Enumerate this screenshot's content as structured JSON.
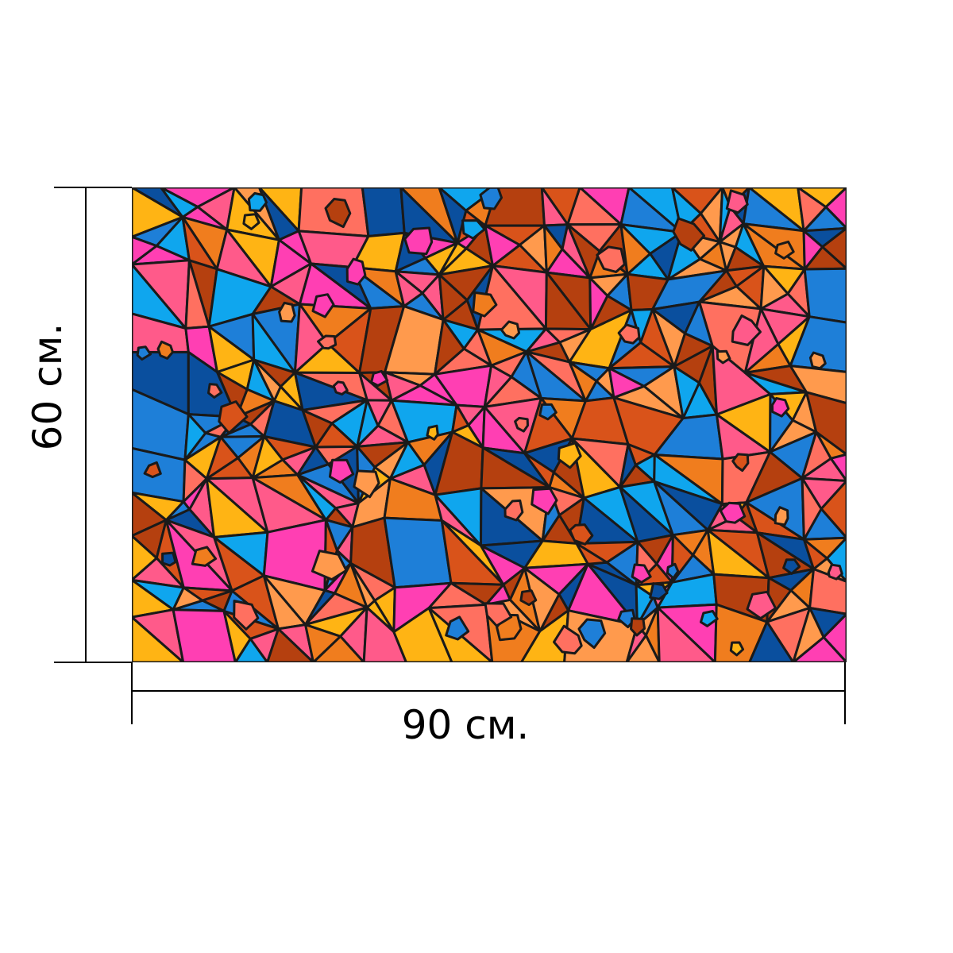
{
  "product_image": {
    "pattern": "stained-glass-mosaic",
    "palette": [
      "#1e7fd8",
      "#0fa6ee",
      "#0a4f9e",
      "#f07d1e",
      "#ff9a4d",
      "#d9531a",
      "#b5400f",
      "#ff5a8a",
      "#ff3fb3",
      "#ffb414",
      "#ff7060"
    ],
    "outline_color": "#1a1a1a"
  },
  "dimensions": {
    "width_label": "90 см.",
    "height_label": "60 см."
  }
}
